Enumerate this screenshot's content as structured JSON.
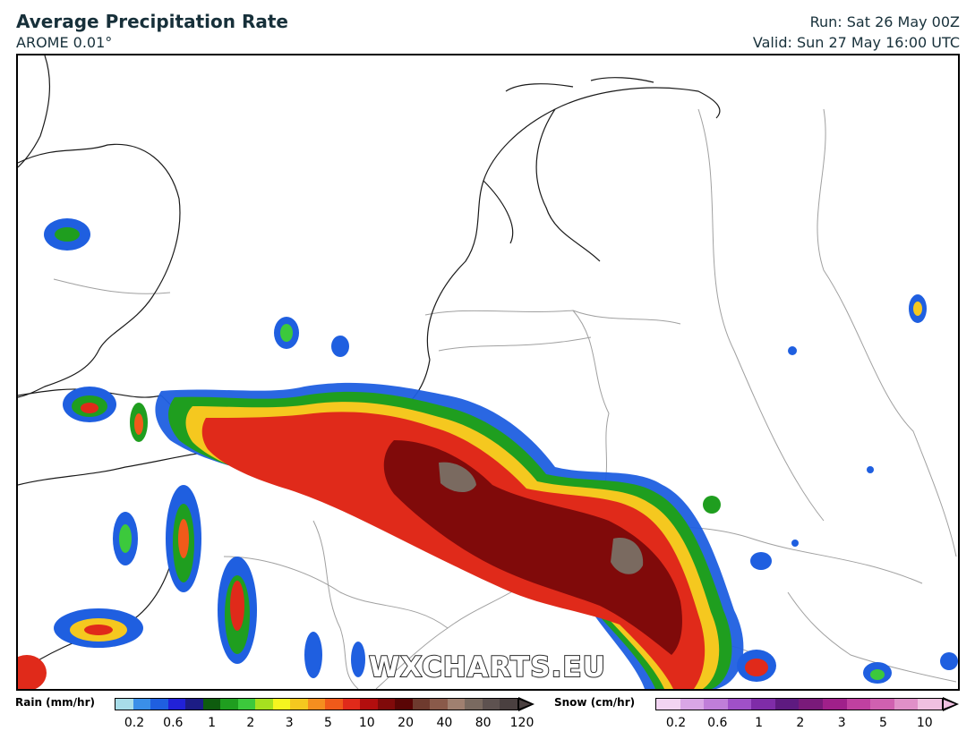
{
  "header": {
    "title": "Average Precipitation Rate",
    "model": "AROME 0.01°",
    "run": "Run: Sat 26 May 00Z",
    "valid": "Valid: Sun 27 May 16:00 UTC"
  },
  "watermark": "WXCHARTS.EU",
  "rain_legend": {
    "label": "Rain (mm/hr)",
    "ticks": [
      "0.2",
      "0.6",
      "1",
      "2",
      "3",
      "5",
      "10",
      "20",
      "40",
      "80",
      "120"
    ],
    "colors": [
      "#a8dde9",
      "#3a8fe8",
      "#1f5fe0",
      "#2121d8",
      "#1c1c85",
      "#0e5c0e",
      "#1f9e1f",
      "#3cc93c",
      "#a6e01f",
      "#f5f51f",
      "#f5c81f",
      "#f58e1f",
      "#f05a1a",
      "#e02a1a",
      "#b30e0e",
      "#800a0a",
      "#5a0505",
      "#6e3a2e",
      "#8a5a4a",
      "#a08070",
      "#7a6a60",
      "#5e5250",
      "#4a4040"
    ]
  },
  "snow_legend": {
    "label": "Snow (cm/hr)",
    "ticks": [
      "0.2",
      "0.6",
      "1",
      "2",
      "3",
      "5",
      "10"
    ],
    "colors": [
      "#f2d4f2",
      "#d9a6e6",
      "#c07ed9",
      "#a050c8",
      "#7f2ca8",
      "#5e1a80",
      "#7a1a7a",
      "#a0208a",
      "#c040a0",
      "#d060b0",
      "#e090c8",
      "#f0c0e0"
    ]
  }
}
